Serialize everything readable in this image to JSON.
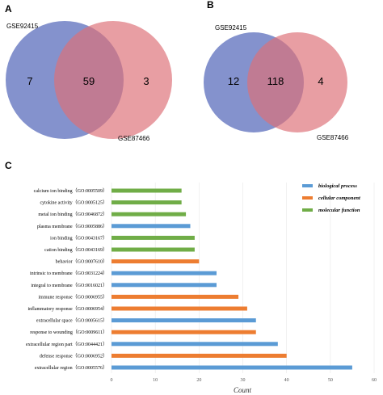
{
  "panels": {
    "a": {
      "letter": "A"
    },
    "b": {
      "letter": "B"
    },
    "c": {
      "letter": "C"
    }
  },
  "venn_a": {
    "left_label": "GSE92415",
    "right_label": "GSE87466",
    "left_only": "7",
    "overlap": "59",
    "right_only": "3"
  },
  "venn_b": {
    "left_label": "GSE92415",
    "right_label": "GSE87466",
    "left_only": "12",
    "overlap": "118",
    "right_only": "4"
  },
  "colors": {
    "venn_left": "#6f7fc4",
    "venn_right": "#dd7078",
    "biological_process": "#5b9bd5",
    "cellular_component": "#ed7d31",
    "molecular_function": "#70ad47"
  },
  "chart_data": {
    "type": "bar",
    "orientation": "horizontal",
    "xlabel": "Count",
    "xlim": [
      0,
      60
    ],
    "xticks": [
      "0",
      "10",
      "20",
      "30",
      "40",
      "50",
      "60"
    ],
    "legend": {
      "position": "top-right",
      "entries": [
        {
          "key": "biological_process",
          "label": "biological process"
        },
        {
          "key": "cellular_component",
          "label": "cellular component"
        },
        {
          "key": "molecular_function",
          "label": "molecular function"
        }
      ]
    },
    "categories": [
      {
        "label": "calcium ion binding（GO:0005509）",
        "value": 16,
        "group": "molecular_function"
      },
      {
        "label": "cytokine activity（GO:0005125）",
        "value": 16,
        "group": "molecular_function"
      },
      {
        "label": "metal ion binding（GO:0046872）",
        "value": 17,
        "group": "molecular_function"
      },
      {
        "label": "plasma membrane（GO:0005886）",
        "value": 18,
        "group": "biological_process"
      },
      {
        "label": "ion binding（GO:0043167）",
        "value": 19,
        "group": "molecular_function"
      },
      {
        "label": "cation binding（GO:0043169）",
        "value": 19,
        "group": "molecular_function"
      },
      {
        "label": "behavior（GO:0007610）",
        "value": 20,
        "group": "cellular_component"
      },
      {
        "label": "intrinsic to membrane（GO:0031224）",
        "value": 24,
        "group": "biological_process"
      },
      {
        "label": "integral to membrane（GO:0016021）",
        "value": 24,
        "group": "biological_process"
      },
      {
        "label": "immune response（GO:0006955）",
        "value": 29,
        "group": "cellular_component"
      },
      {
        "label": "inflammatory response（GO:0006954）",
        "value": 31,
        "group": "cellular_component"
      },
      {
        "label": "extracellular space（GO:0005615）",
        "value": 33,
        "group": "biological_process"
      },
      {
        "label": "response to wounding（GO:0009611）",
        "value": 33,
        "group": "cellular_component"
      },
      {
        "label": "extracellular region part（GO:0044421）",
        "value": 38,
        "group": "biological_process"
      },
      {
        "label": "defense response（GO:0006952）",
        "value": 40,
        "group": "cellular_component"
      },
      {
        "label": "extracellular region（GO:0005576）",
        "value": 55,
        "group": "biological_process"
      }
    ]
  }
}
